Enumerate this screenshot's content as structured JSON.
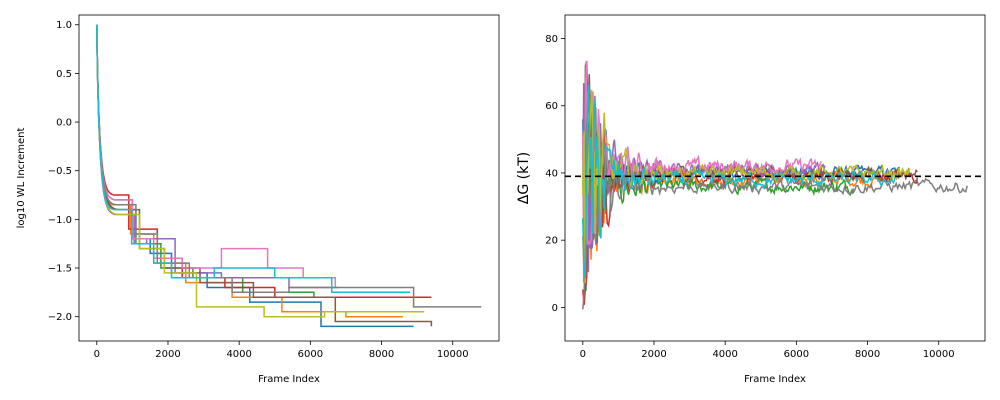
{
  "chart_data": [
    {
      "type": "line",
      "title": "",
      "xlabel": "Frame Index",
      "ylabel": "log10 WL Increment",
      "xlim": [
        -500,
        11300
      ],
      "ylim": [
        -2.25,
        1.1
      ],
      "xticks": [
        0,
        2000,
        4000,
        6000,
        8000,
        10000
      ],
      "xtick_labels": [
        "0",
        "2000",
        "4000",
        "6000",
        "8000",
        "10000"
      ],
      "yticks": [
        1.0,
        0.5,
        0.0,
        -0.5,
        -1.0,
        -1.5,
        -2.0
      ],
      "ytick_labels": [
        "1.0",
        "0.5",
        "0.0",
        "−0.5",
        "−1.0",
        "−1.5",
        "−2.0"
      ],
      "series": [
        {
          "color": "#1f77b4",
          "x": [
            0,
            500,
            1000,
            1500,
            2100,
            3100,
            4300,
            6300,
            8900
          ],
          "y": [
            1.0,
            -0.8,
            -1.2,
            -1.35,
            -1.55,
            -1.7,
            -1.85,
            -2.1,
            -2.1
          ]
        },
        {
          "color": "#ff7f0e",
          "x": [
            0,
            450,
            950,
            1600,
            2500,
            3800,
            5200,
            7000,
            8600
          ],
          "y": [
            1.0,
            -0.85,
            -1.15,
            -1.45,
            -1.65,
            -1.8,
            -1.95,
            -2.0,
            -2.0
          ]
        },
        {
          "color": "#2ca02c",
          "x": [
            0,
            550,
            1100,
            1800,
            2700,
            4100,
            6100,
            7600,
            7600
          ],
          "y": [
            1.0,
            -0.9,
            -1.25,
            -1.5,
            -1.6,
            -1.75,
            -1.8,
            -1.8,
            -1.8
          ]
        },
        {
          "color": "#d62728",
          "x": [
            0,
            480,
            900,
            1700,
            2400,
            3600,
            5000,
            7200,
            9400
          ],
          "y": [
            1.0,
            -0.75,
            -1.1,
            -1.4,
            -1.6,
            -1.7,
            -1.8,
            -1.8,
            -1.8
          ]
        },
        {
          "color": "#9467bd",
          "x": [
            0,
            520,
            1050,
            1400,
            2200,
            3500,
            5400,
            6800,
            6800
          ],
          "y": [
            1.0,
            -0.95,
            -1.25,
            -1.2,
            -1.55,
            -1.6,
            -1.7,
            -1.7,
            -1.7
          ]
        },
        {
          "color": "#8c564b",
          "x": [
            0,
            600,
            1200,
            1900,
            2900,
            4400,
            6700,
            9400,
            9400
          ],
          "y": [
            1.0,
            -0.9,
            -1.3,
            -1.5,
            -1.65,
            -1.8,
            -2.05,
            -2.1,
            -2.1
          ]
        },
        {
          "color": "#e377c2",
          "x": [
            0,
            500,
            1000,
            1600,
            2400,
            3500,
            4800,
            5800,
            6700
          ],
          "y": [
            1.0,
            -0.8,
            -1.2,
            -1.4,
            -1.5,
            -1.3,
            -1.5,
            -1.6,
            -1.7
          ]
        },
        {
          "color": "#7f7f7f",
          "x": [
            0,
            530,
            1100,
            1700,
            2600,
            3800,
            5400,
            8900,
            10800
          ],
          "y": [
            1.0,
            -0.85,
            -1.15,
            -1.45,
            -1.6,
            -1.75,
            -1.7,
            -1.9,
            -1.9
          ]
        },
        {
          "color": "#bcbd22",
          "x": [
            0,
            580,
            1200,
            1900,
            2800,
            4700,
            6400,
            9200,
            9200
          ],
          "y": [
            1.0,
            -0.95,
            -1.3,
            -1.55,
            -1.9,
            -2.0,
            -1.95,
            -1.95,
            -1.95
          ]
        },
        {
          "color": "#17becf",
          "x": [
            0,
            470,
            980,
            1600,
            2100,
            3300,
            5000,
            6600,
            8800
          ],
          "y": [
            1.0,
            -0.9,
            -1.25,
            -1.45,
            -1.6,
            -1.5,
            -1.6,
            -1.75,
            -1.75
          ]
        }
      ]
    },
    {
      "type": "line",
      "title": "",
      "xlabel": "Frame Index",
      "ylabel": "ΔG (kT)",
      "xlim": [
        -500,
        11300
      ],
      "ylim": [
        -10,
        87
      ],
      "xticks": [
        0,
        2000,
        4000,
        6000,
        8000,
        10000
      ],
      "xtick_labels": [
        "0",
        "2000",
        "4000",
        "6000",
        "8000",
        "10000"
      ],
      "yticks": [
        0,
        20,
        40,
        60,
        80
      ],
      "ytick_labels": [
        "0",
        "20",
        "40",
        "60",
        "80"
      ],
      "reference_line": {
        "y": 39,
        "color": "#000000",
        "style": "dashed"
      },
      "series": [
        {
          "color": "#1f77b4",
          "x_end": 8900,
          "start": 82,
          "final": 40
        },
        {
          "color": "#ff7f0e",
          "x_end": 8600,
          "start": 78,
          "final": 38
        },
        {
          "color": "#2ca02c",
          "x_end": 7600,
          "start": 70,
          "final": 36
        },
        {
          "color": "#d62728",
          "x_end": 9400,
          "start": 80,
          "final": 39
        },
        {
          "color": "#9467bd",
          "x_end": 6800,
          "start": 75,
          "final": 41
        },
        {
          "color": "#8c564b",
          "x_end": 9400,
          "start": -5,
          "final": 40
        },
        {
          "color": "#e377c2",
          "x_end": 6700,
          "start": 66,
          "final": 42
        },
        {
          "color": "#7f7f7f",
          "x_end": 10800,
          "start": 10,
          "final": 36
        },
        {
          "color": "#bcbd22",
          "x_end": 9200,
          "start": 60,
          "final": 40
        },
        {
          "color": "#17becf",
          "x_end": 8800,
          "start": 55,
          "final": 38
        }
      ]
    }
  ]
}
